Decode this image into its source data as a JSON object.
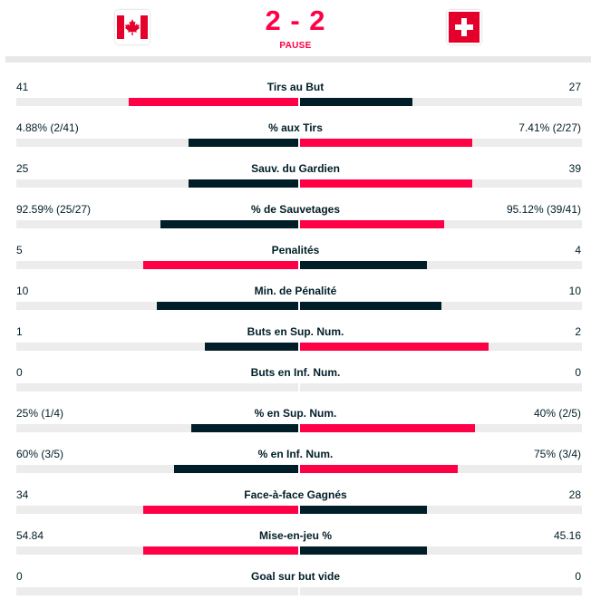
{
  "header": {
    "home_flag": "canada-flag",
    "away_flag": "switzerland-flag",
    "score": "2 - 2",
    "status": "PAUSE",
    "accent_color": "#ff0046",
    "dark_color": "#001e28"
  },
  "stats": [
    {
      "label": "Tirs au But",
      "home": "41",
      "away": "27",
      "home_frac": 0.6,
      "away_frac": 0.4,
      "home_leads": true
    },
    {
      "label": "% aux Tirs",
      "home": "4.88% (2/41)",
      "away": "7.41% (2/27)",
      "home_frac": 0.39,
      "away_frac": 0.61,
      "home_leads": false
    },
    {
      "label": "Sauv. du Gardien",
      "home": "25",
      "away": "39",
      "home_frac": 0.39,
      "away_frac": 0.61,
      "home_leads": false
    },
    {
      "label": "% de Sauvetages",
      "home": "92.59% (25/27)",
      "away": "95.12% (39/41)",
      "home_frac": 0.49,
      "away_frac": 0.51,
      "home_leads": false
    },
    {
      "label": "Penalités",
      "home": "5",
      "away": "4",
      "home_frac": 0.55,
      "away_frac": 0.45,
      "home_leads": true
    },
    {
      "label": "Min. de Pénalité",
      "home": "10",
      "away": "10",
      "home_frac": 0.5,
      "away_frac": 0.5,
      "home_leads": null
    },
    {
      "label": "Buts en Sup. Num.",
      "home": "1",
      "away": "2",
      "home_frac": 0.33,
      "away_frac": 0.67,
      "home_leads": false
    },
    {
      "label": "Buts en Inf. Num.",
      "home": "0",
      "away": "0",
      "home_frac": 0,
      "away_frac": 0,
      "home_leads": null
    },
    {
      "label": "% en Sup. Num.",
      "home": "25% (1/4)",
      "away": "40% (2/5)",
      "home_frac": 0.38,
      "away_frac": 0.62,
      "home_leads": false
    },
    {
      "label": "% en Inf. Num.",
      "home": "60% (3/5)",
      "away": "75% (3/4)",
      "home_frac": 0.44,
      "away_frac": 0.56,
      "home_leads": false
    },
    {
      "label": "Face-à-face Gagnés",
      "home": "34",
      "away": "28",
      "home_frac": 0.55,
      "away_frac": 0.45,
      "home_leads": true
    },
    {
      "label": "Mise-en-jeu %",
      "home": "54.84",
      "away": "45.16",
      "home_frac": 0.55,
      "away_frac": 0.45,
      "home_leads": true
    },
    {
      "label": "Goal sur but vide",
      "home": "0",
      "away": "0",
      "home_frac": 0,
      "away_frac": 0,
      "home_leads": null
    }
  ]
}
